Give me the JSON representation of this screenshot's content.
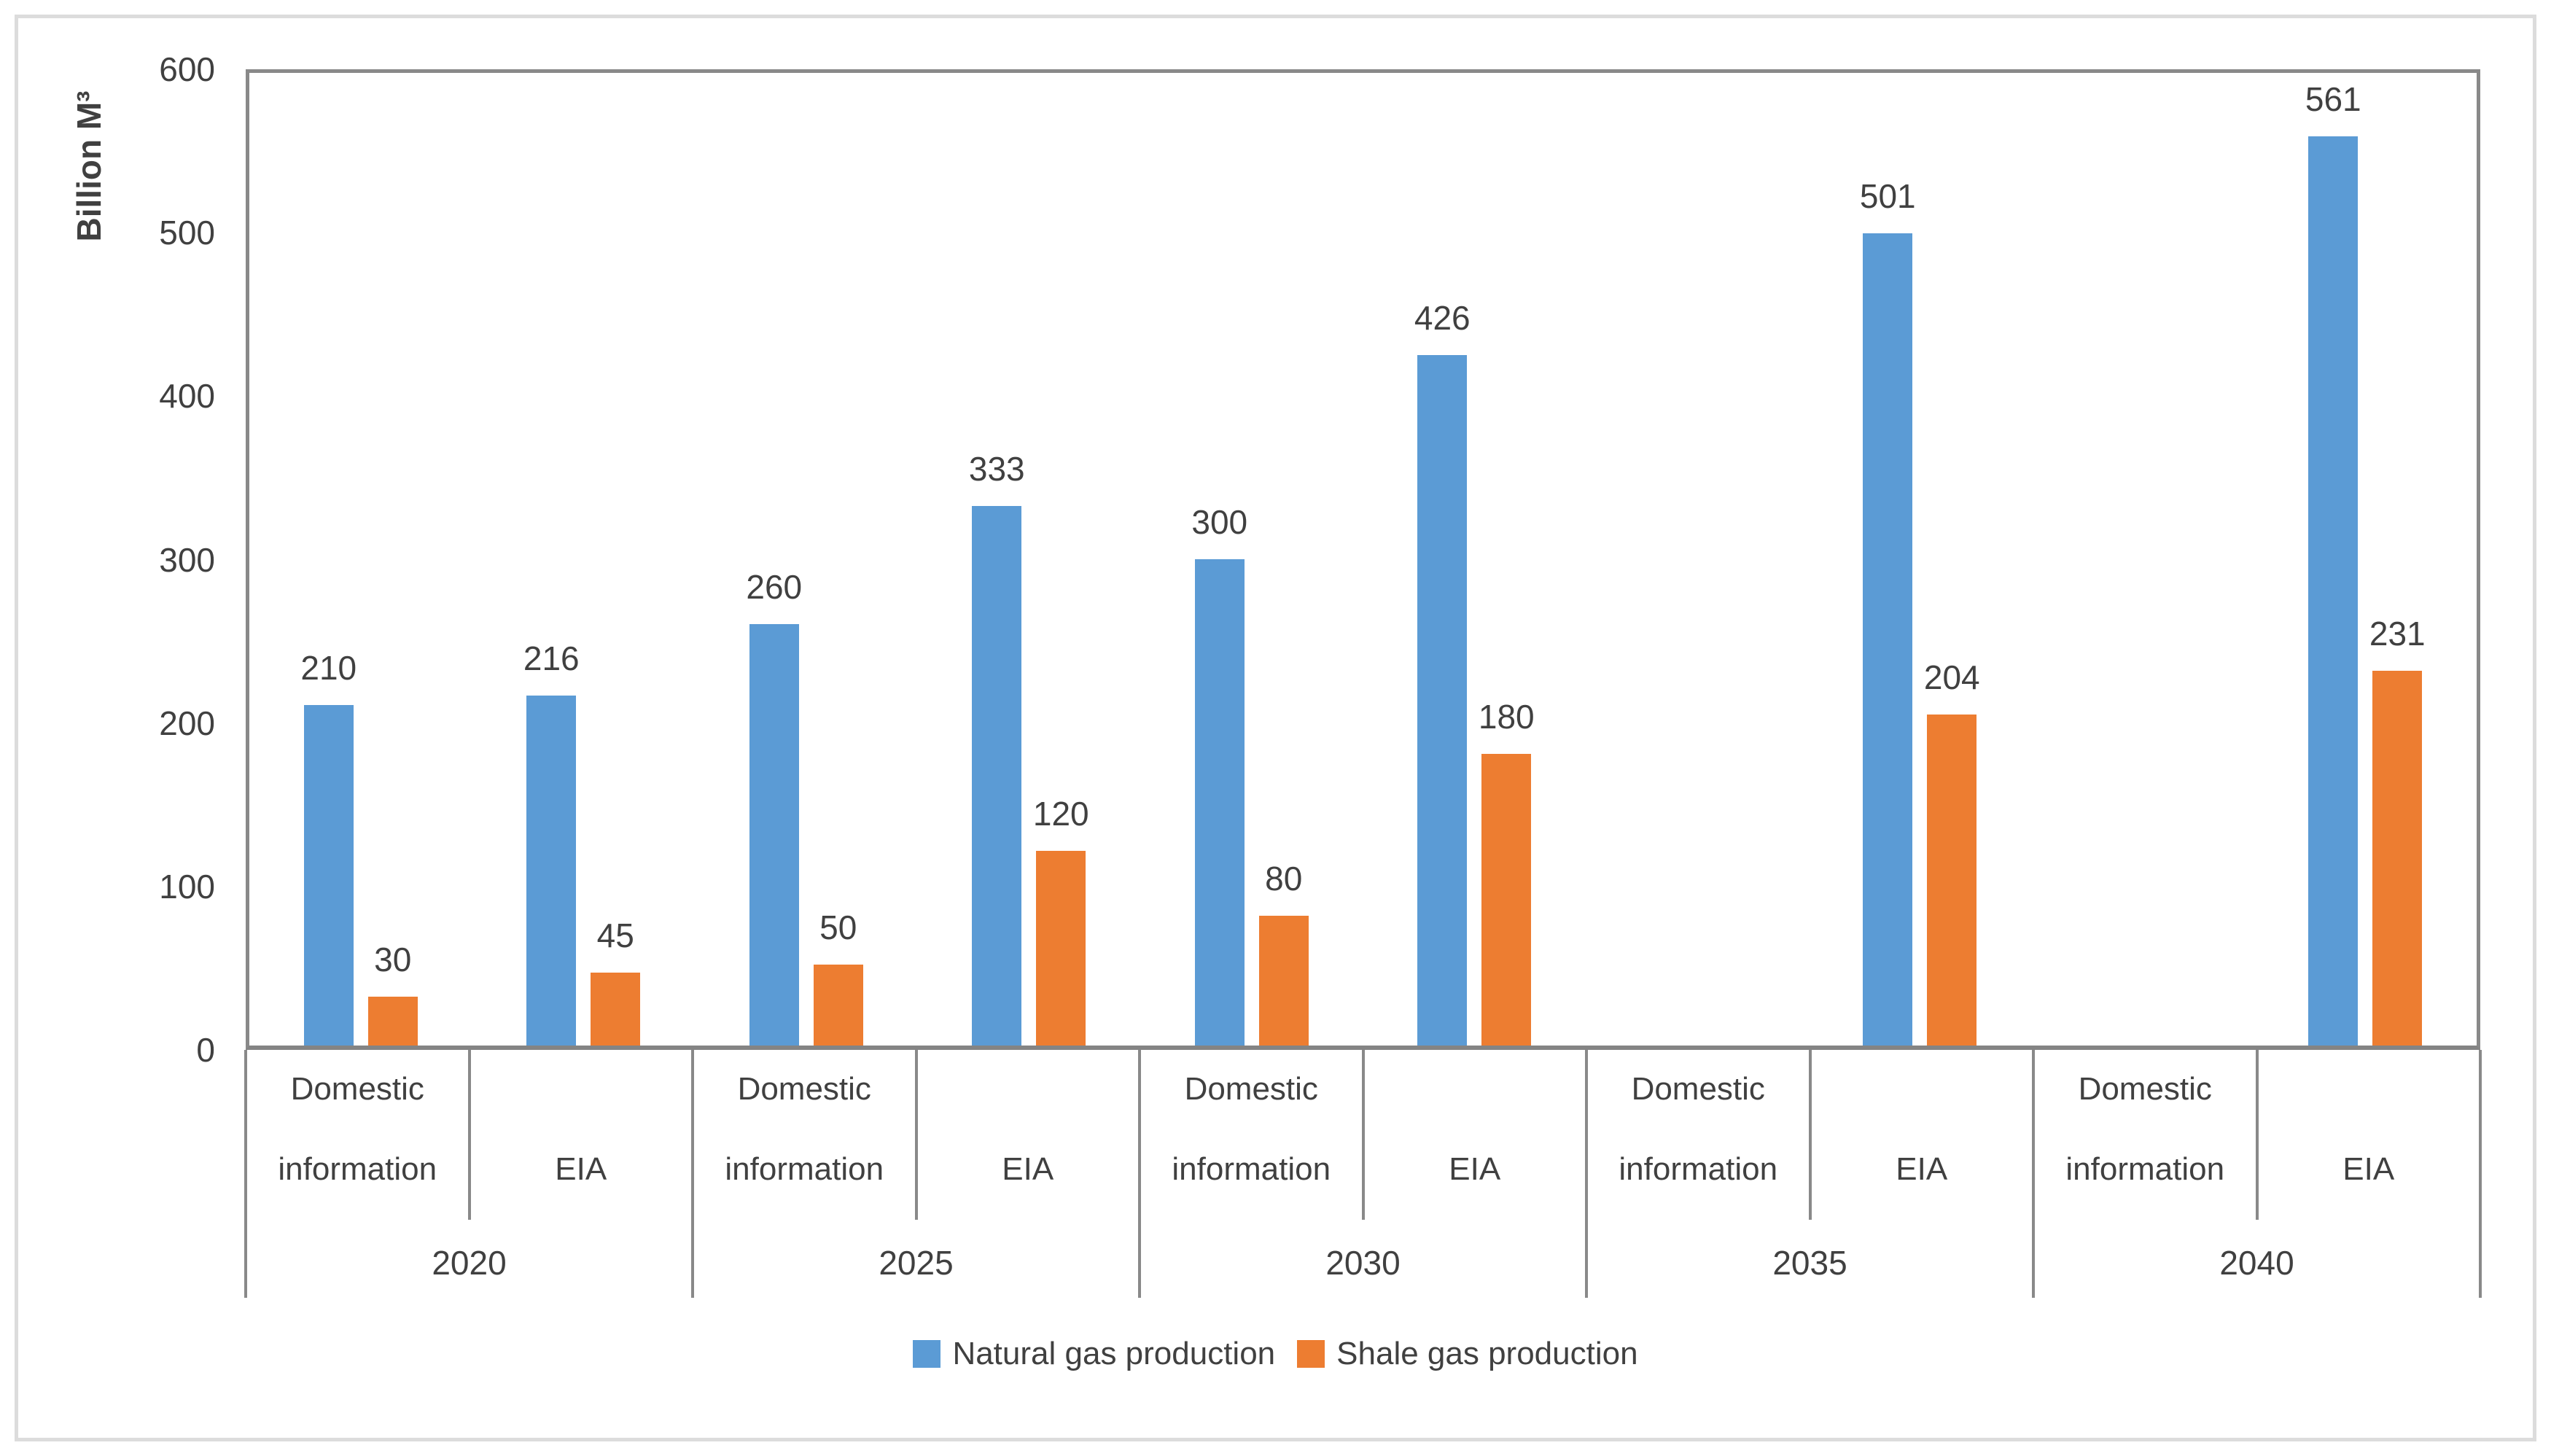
{
  "y_axis": {
    "title": "Billion M³",
    "ticks": [
      0,
      100,
      200,
      300,
      400,
      500,
      600
    ]
  },
  "legend": {
    "items": [
      {
        "label": "Natural gas production",
        "color": "#5B9BD5"
      },
      {
        "label": "Shale gas production",
        "color": "#ED7D31"
      }
    ]
  },
  "chart_data": {
    "type": "bar",
    "title": "",
    "xlabel": "",
    "ylabel": "Billion M³",
    "ylim": [
      0,
      600
    ],
    "y_ticks": [
      0,
      100,
      200,
      300,
      400,
      500,
      600
    ],
    "grid": false,
    "legend_position": "bottom-center",
    "data_labels": true,
    "categories": [
      "2020",
      "2025",
      "2030",
      "2035",
      "2040"
    ],
    "subcategories": [
      "Domestic information",
      "EIA"
    ],
    "series": [
      {
        "name": "Natural gas production",
        "color": "#5B9BD5",
        "values": [
          [
            210,
            216
          ],
          [
            260,
            333
          ],
          [
            300,
            426
          ],
          [
            null,
            501
          ],
          [
            null,
            561
          ]
        ]
      },
      {
        "name": "Shale gas production",
        "color": "#ED7D31",
        "values": [
          [
            30,
            45
          ],
          [
            50,
            120
          ],
          [
            80,
            180
          ],
          [
            null,
            204
          ],
          [
            null,
            231
          ]
        ]
      }
    ],
    "colors": {
      "axis_line": "#898989",
      "text": "#404040",
      "outer_frame": "#dcdcdc"
    }
  }
}
